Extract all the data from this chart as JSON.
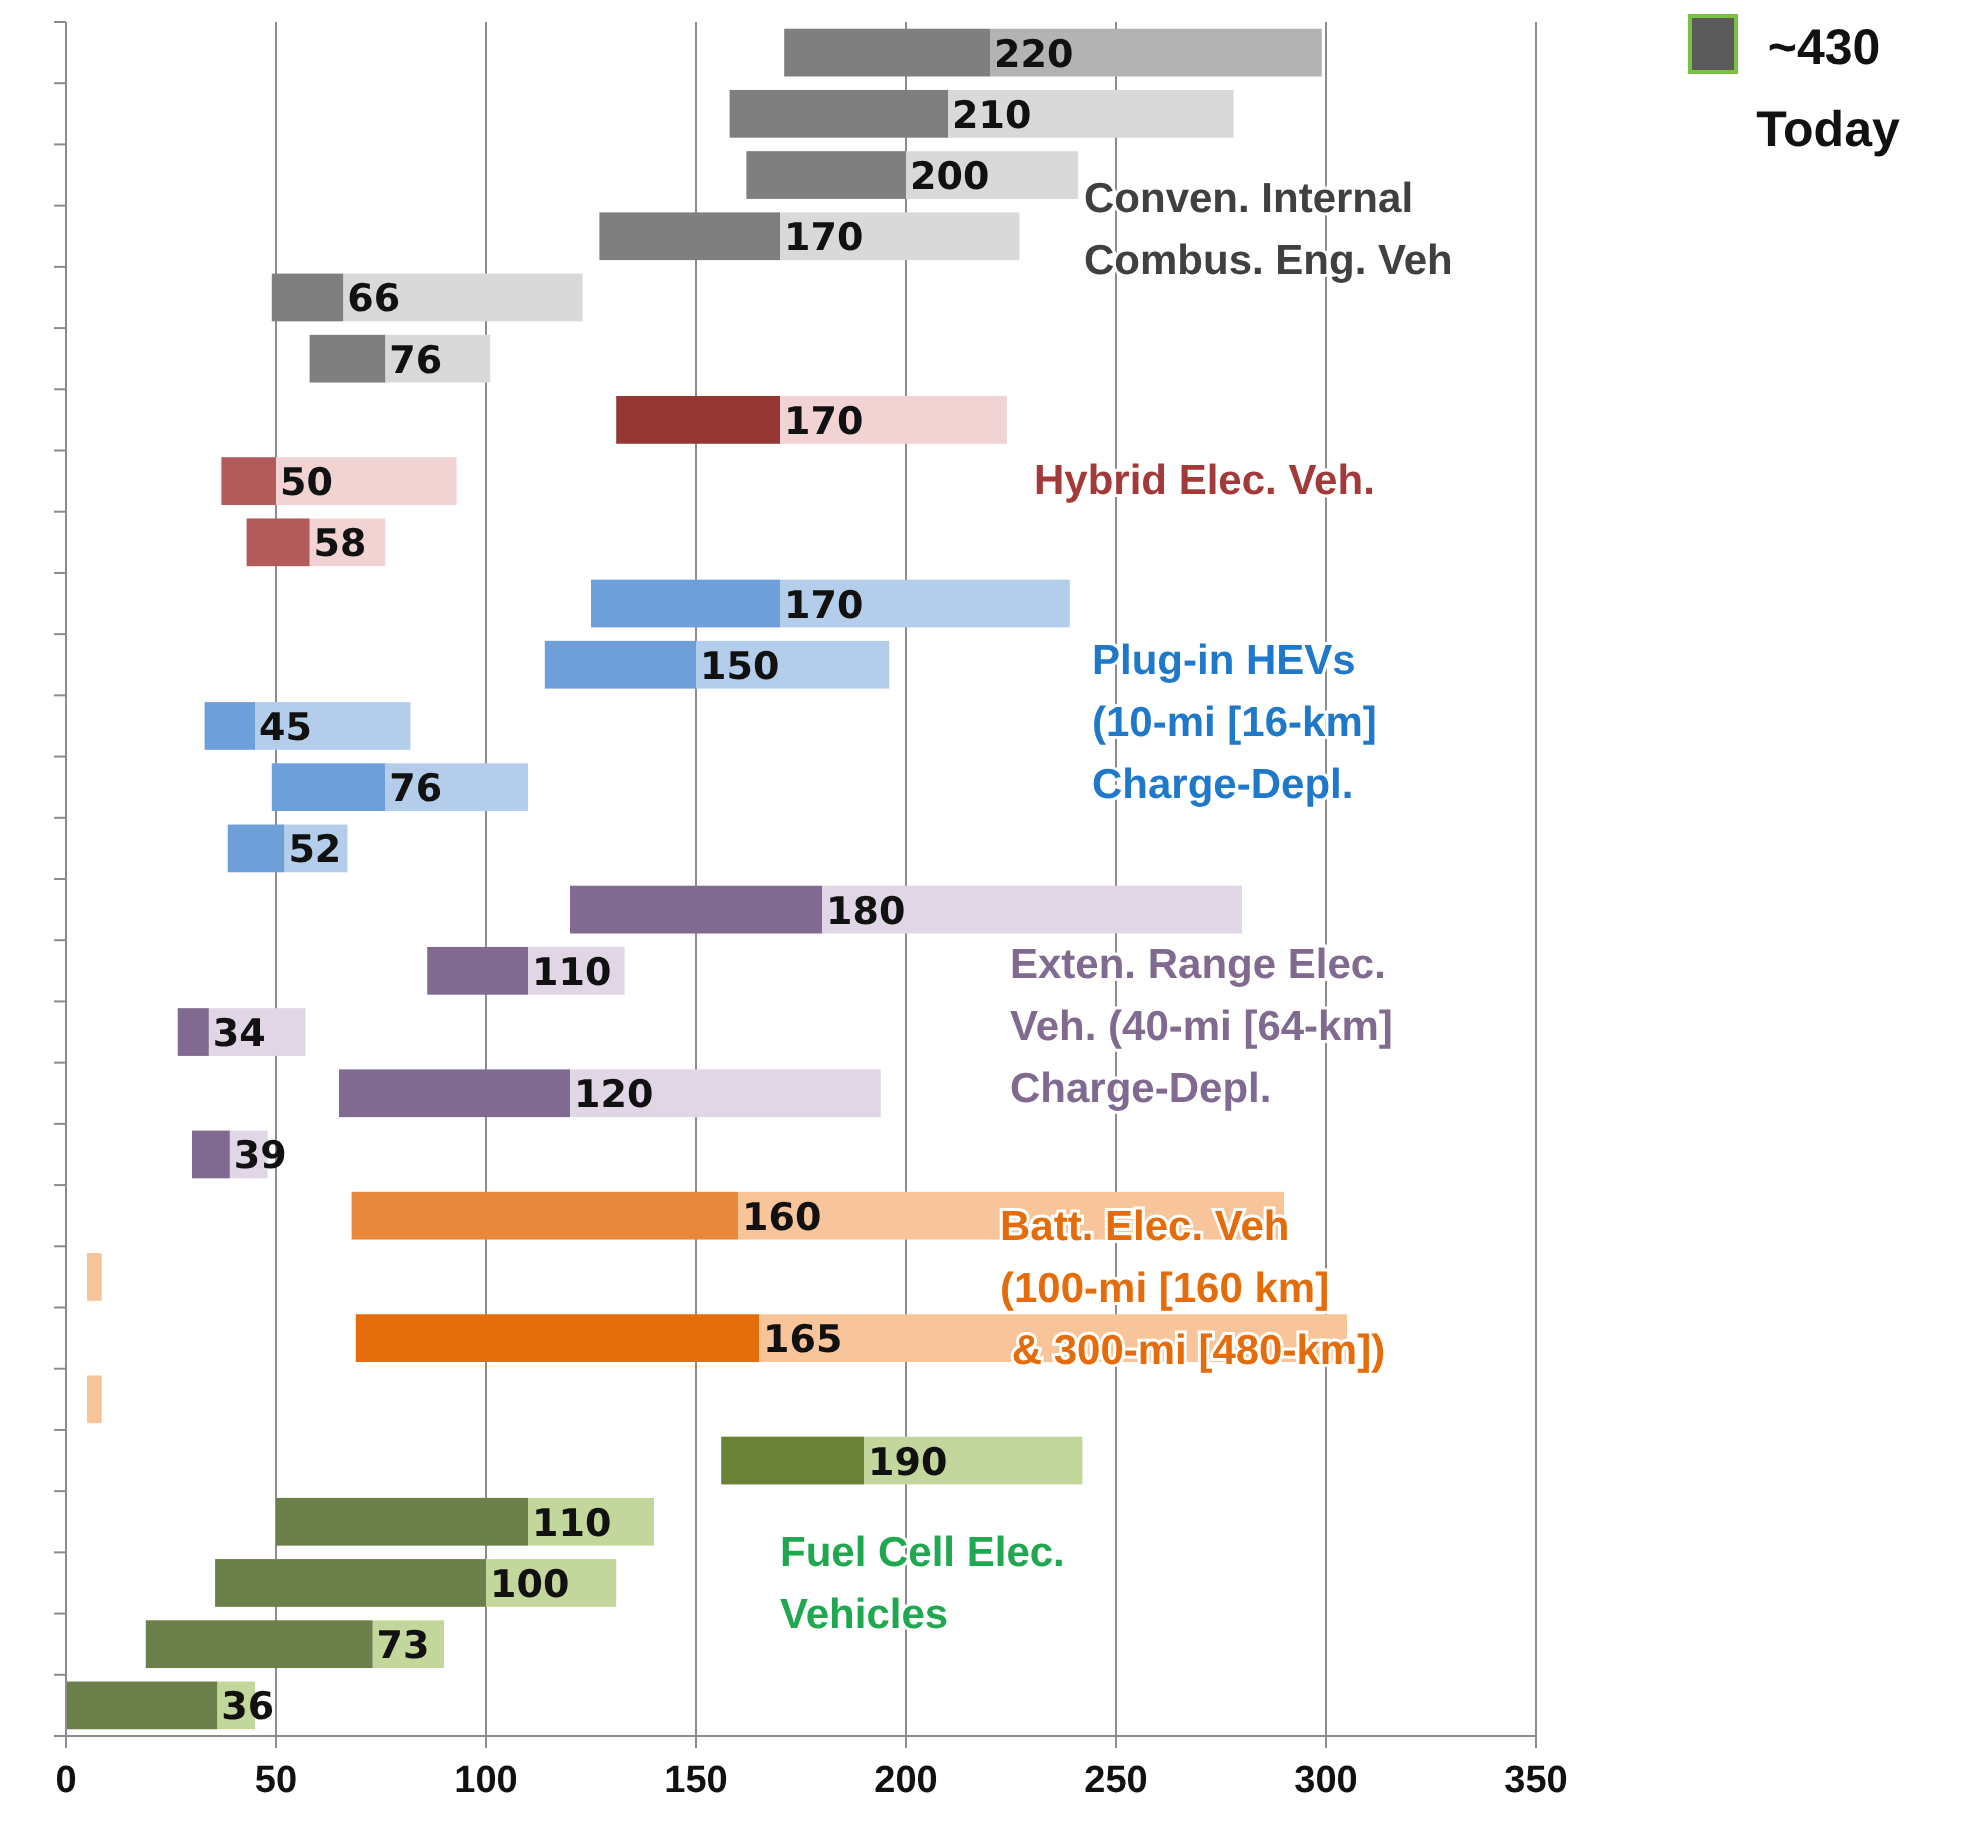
{
  "chart_data": {
    "type": "bar",
    "orientation": "horizontal",
    "stacked": false,
    "categories": [
      null,
      null,
      null,
      null,
      null,
      null,
      null,
      null,
      null,
      null,
      null,
      null,
      null,
      null,
      null,
      null,
      null,
      null,
      null,
      null,
      null,
      null,
      null,
      null,
      null,
      null,
      null,
      null
    ],
    "xlim": [
      0,
      350
    ],
    "xticks": [
      0,
      50,
      100,
      150,
      200,
      250,
      300,
      350
    ],
    "grid": "x",
    "tick_labels": "x",
    "series": [
      {
        "base": [
          220,
          210,
          200,
          170,
          66,
          76,
          170,
          50,
          58,
          170,
          150,
          45,
          76,
          52,
          180,
          110,
          34,
          120,
          39,
          160,
          5,
          165,
          5,
          190,
          110,
          100,
          73,
          36
        ],
        "values": [
          79,
          68,
          41,
          57,
          57,
          25,
          54,
          43,
          18,
          69,
          46,
          37,
          34,
          15,
          100,
          23,
          23,
          74,
          9,
          130,
          3.5,
          140,
          3.5,
          52,
          30,
          31,
          17,
          9
        ],
        "colors": [
          "#b3b3b3",
          "#d9d9d9",
          "#d9d9d9",
          "#d9d9d9",
          "#d9d9d9",
          "#d9d9d9",
          "#f2d3d3",
          "#f2d3d3",
          "#f2d3d3",
          "#b4cdeb",
          "#b4cdeb",
          "#b4cdeb",
          "#b4cdeb",
          "#b4cdeb",
          "#e0d6e6",
          "#e0d6e6",
          "#e0d6e6",
          "#e0d6e6",
          "#e0d6e6",
          "#f8c59a",
          "#f8c59a",
          "#f8c59a",
          "#f8c59a",
          "#c3d69b",
          "#c3d69b",
          "#c3d69b",
          "#c3d69b",
          "#c3d69b"
        ]
      },
      {
        "base": [
          171,
          158,
          162,
          127,
          49,
          58,
          131,
          37,
          43,
          125,
          114,
          33,
          49,
          38.5,
          120,
          86,
          26.6,
          65,
          30,
          68,
          null,
          69,
          null,
          156,
          50,
          35.5,
          19,
          0
        ],
        "values": [
          49,
          52,
          38,
          43,
          17,
          18,
          39,
          13,
          15,
          45,
          36,
          12,
          27,
          13.5,
          60,
          24,
          7.4,
          55,
          9,
          92,
          null,
          96,
          null,
          34,
          60,
          64.5,
          54,
          36
        ],
        "value_labels": [
          "220",
          "210",
          "200",
          "170",
          "66",
          "76",
          "170",
          "50",
          "58",
          "170",
          "150",
          "45",
          "76",
          "52",
          "180",
          "110",
          "34",
          "120",
          "39",
          "160",
          null,
          "165",
          null,
          "190",
          "110",
          "100",
          "73",
          "36"
        ],
        "colors": [
          "#7f7f7f",
          "#7f7f7f",
          "#7f7f7f",
          "#7f7f7f",
          "#7f7f7f",
          "#7f7f7f",
          "#953735",
          "#b35a5a",
          "#b35a5a",
          "#6f9fd9",
          "#6f9fd9",
          "#6f9fd9",
          "#6f9fd9",
          "#6f9fd9",
          "#806a90",
          "#806a90",
          "#806a90",
          "#806a90",
          "#806a90",
          "#e8883c",
          "#e8883c",
          "#e46c0a",
          "#e46c0a",
          "#698235",
          "#6a7f4a",
          "#6a7f4a",
          "#6a7f4a",
          "#6a7f4a"
        ]
      }
    ],
    "annotations": [
      "~430",
      "Today",
      "Conven. Internal\nCombus. Eng. Veh",
      "Hybrid Elec. Veh.",
      "Plug-in HEVs\n(10-mi [16-km]\nCharge-Depl.",
      "Exten. Range Elec.\nVeh. (40-mi [64-km]\nCharge-Depl.",
      "Batt. Elec. Veh\n(100-mi [160 km]\n & 300-mi [480-km])",
      "Fuel Cell Elec.\nVehicles"
    ]
  }
}
